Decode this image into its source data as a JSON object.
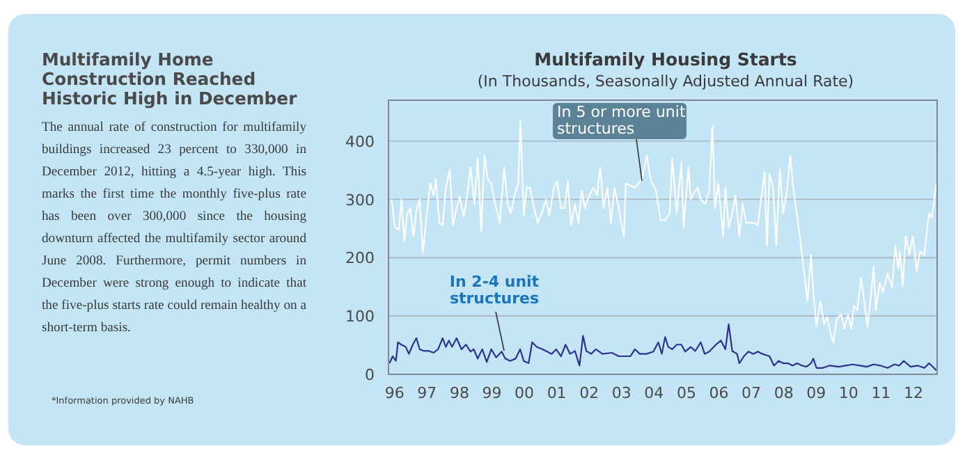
{
  "chart_data": [
    {
      "type": "other",
      "title": "Multifamily Home Construction Reached Historic High in December",
      "annotations": [
        "The annual rate of construction for multifamily buildings increased 23 percent to 330,000 in December 2012, hitting a 4.5-year high. This marks the first time the monthly five-plus rate has been over 300,000 since the housing downturn affected the multifamily sector around June 2008. Furthermore, permit numbers in December were strong enough to indicate that the five-plus starts rate could remain healthy on a short-term basis.",
        "*Information provided by NAHB"
      ]
    },
    {
      "type": "line",
      "title": "Multifamily Housing Starts",
      "subtitle": "(In Thousands, Seasonally Adjusted Annual Rate)",
      "xlim": [
        1995.94,
        2012.86
      ],
      "ylim": [
        0,
        470
      ],
      "xticks": [
        {
          "value": 1996,
          "label": "96"
        },
        {
          "value": 1997,
          "label": "97"
        },
        {
          "value": 1998,
          "label": "98"
        },
        {
          "value": 1999,
          "label": "99"
        },
        {
          "value": 2000,
          "label": "00"
        },
        {
          "value": 2001,
          "label": "01"
        },
        {
          "value": 2002,
          "label": "02"
        },
        {
          "value": 2003,
          "label": "03"
        },
        {
          "value": 2004,
          "label": "04"
        },
        {
          "value": 2005,
          "label": "05"
        },
        {
          "value": 2006,
          "label": "06"
        },
        {
          "value": 2007,
          "label": "07"
        },
        {
          "value": 2008,
          "label": "08"
        },
        {
          "value": 2009,
          "label": "09"
        },
        {
          "value": 2010,
          "label": "10"
        },
        {
          "value": 2011,
          "label": "11"
        },
        {
          "value": 2012,
          "label": "12"
        }
      ],
      "yticks": [
        0,
        100,
        200,
        300,
        400
      ],
      "grid": "y",
      "legend": false,
      "marker": "none",
      "line_style": "solid",
      "series": [
        {
          "name": "In 5 or more unit structures",
          "color": "#ffffff",
          "x": [
            1996.04,
            1996.14,
            1996.26,
            1996.34,
            1996.43,
            1996.51,
            1996.61,
            1996.71,
            1996.8,
            1996.9,
            1997.0,
            1997.11,
            1997.23,
            1997.33,
            1997.4,
            1997.51,
            1997.61,
            1997.71,
            1997.83,
            1997.93,
            1998.04,
            1998.14,
            1998.26,
            1998.37,
            1998.47,
            1998.59,
            1998.69,
            1998.8,
            1998.9,
            1999.0,
            1999.11,
            1999.23,
            1999.37,
            1999.51,
            1999.61,
            1999.71,
            1999.83,
            1999.94,
            2000.01,
            2000.11,
            2000.2,
            2000.3,
            2000.43,
            2000.54,
            2000.69,
            2000.8,
            2000.9,
            2001.04,
            2001.14,
            2001.26,
            2001.37,
            2001.47,
            2001.57,
            2001.69,
            2001.8,
            2001.9,
            2002.0,
            2002.11,
            2002.26,
            2002.37,
            2002.47,
            2002.57,
            2002.69,
            2002.8,
            2002.91,
            2003.04,
            2003.11,
            2003.2,
            2003.26,
            2003.54,
            2003.76,
            2003.9,
            2004.04,
            2004.19,
            2004.33,
            2004.47,
            2004.61,
            2004.69,
            2004.83,
            2004.97,
            2005.04,
            2005.19,
            2005.26,
            2005.37,
            2005.47,
            2005.57,
            2005.71,
            2005.83,
            2005.93,
            2006.01,
            2006.11,
            2006.26,
            2006.33,
            2006.43,
            2006.54,
            2006.64,
            2006.76,
            2006.86,
            2006.97,
            2007.19,
            2007.33,
            2007.44,
            2007.54,
            2007.61,
            2007.69,
            2007.8,
            2007.9,
            2008.01,
            2008.11,
            2008.23,
            2008.33,
            2008.43,
            2008.54,
            2008.66,
            2008.76,
            2008.86,
            2008.97,
            2009.04,
            2009.14,
            2009.26,
            2009.37,
            2009.47,
            2009.57,
            2009.66,
            2009.76,
            2009.9,
            2010.0,
            2010.11,
            2010.21,
            2010.29,
            2010.4,
            2010.51,
            2010.61,
            2010.71,
            2010.83,
            2010.9,
            2010.97,
            2011.09,
            2011.19,
            2011.33,
            2011.47,
            2011.57,
            2011.66,
            2011.71,
            2011.8,
            2011.89,
            2012.0,
            2012.11,
            2012.23,
            2012.33,
            2012.47,
            2012.54,
            2012.61,
            2012.69,
            2012.76,
            2012.83
          ],
          "values": [
            300,
            252,
            248,
            300,
            228,
            273,
            285,
            237,
            280,
            300,
            208,
            270,
            327,
            307,
            335,
            260,
            256,
            320,
            351,
            256,
            285,
            304,
            270,
            307,
            355,
            292,
            371,
            245,
            375,
            335,
            327,
            292,
            260,
            355,
            292,
            276,
            307,
            327,
            434,
            272,
            320,
            320,
            285,
            260,
            280,
            300,
            272,
            320,
            331,
            285,
            285,
            331,
            256,
            292,
            260,
            315,
            285,
            304,
            320,
            307,
            355,
            285,
            320,
            260,
            320,
            285,
            260,
            237,
            327,
            320,
            335,
            375,
            331,
            315,
            264,
            264,
            276,
            371,
            276,
            363,
            252,
            355,
            300,
            312,
            320,
            300,
            292,
            315,
            426,
            285,
            327,
            237,
            320,
            252,
            276,
            307,
            237,
            292,
            260,
            260,
            256,
            304,
            347,
            221,
            343,
            320,
            221,
            351,
            276,
            315,
            375,
            315,
            272,
            221,
            173,
            126,
            205,
            141,
            82,
            126,
            86,
            98,
            70,
            55,
            95,
            103,
            78,
            103,
            78,
            118,
            110,
            165,
            126,
            82,
            141,
            185,
            110,
            157,
            141,
            173,
            149,
            221,
            180,
            211,
            152,
            237,
            205,
            237,
            176,
            211,
            205,
            245,
            276,
            269,
            292,
            327
          ]
        },
        {
          "name": "In 2-4 unit structures",
          "color": "#2e3192",
          "x": [
            1995.97,
            1996.07,
            1996.17,
            1996.23,
            1996.33,
            1996.47,
            1996.57,
            1996.69,
            1996.8,
            1996.9,
            1997.04,
            1997.19,
            1997.33,
            1997.47,
            1997.61,
            1997.71,
            1997.8,
            1997.9,
            1998.04,
            1998.19,
            1998.33,
            1998.47,
            1998.57,
            1998.69,
            1998.83,
            1998.97,
            1999.11,
            1999.26,
            1999.43,
            1999.54,
            1999.69,
            1999.86,
            2000.0,
            2000.11,
            2000.26,
            2000.37,
            2000.51,
            2000.69,
            2000.83,
            2000.97,
            2001.11,
            2001.26,
            2001.4,
            2001.54,
            2001.69,
            2001.83,
            2001.94,
            2002.04,
            2002.19,
            2002.33,
            2002.54,
            2002.83,
            2003.04,
            2003.26,
            2003.4,
            2003.54,
            2003.69,
            2003.9,
            2004.11,
            2004.26,
            2004.37,
            2004.47,
            2004.57,
            2004.69,
            2004.83,
            2004.97,
            2005.09,
            2005.26,
            2005.4,
            2005.57,
            2005.69,
            2005.83,
            2006.04,
            2006.19,
            2006.33,
            2006.43,
            2006.54,
            2006.69,
            2006.76,
            2006.9,
            2007.04,
            2007.19,
            2007.33,
            2007.47,
            2007.69,
            2007.83,
            2007.97,
            2008.11,
            2008.26,
            2008.4,
            2008.54,
            2008.69,
            2008.83,
            2008.97,
            2009.04,
            2009.14,
            2009.33,
            2009.54,
            2009.83,
            2010.04,
            2010.26,
            2010.47,
            2010.69,
            2010.9,
            2011.11,
            2011.33,
            2011.54,
            2011.69,
            2011.83,
            2012.04,
            2012.26,
            2012.47,
            2012.61,
            2012.76,
            2012.83
          ],
          "values": [
            19,
            31,
            23,
            55,
            51,
            47,
            35,
            51,
            62,
            43,
            40,
            40,
            37,
            43,
            62,
            47,
            58,
            47,
            62,
            43,
            51,
            39,
            43,
            27,
            43,
            21,
            43,
            29,
            39,
            27,
            23,
            27,
            43,
            23,
            19,
            55,
            47,
            43,
            39,
            35,
            43,
            31,
            51,
            35,
            40,
            15,
            66,
            40,
            35,
            43,
            35,
            37,
            31,
            31,
            31,
            43,
            35,
            35,
            39,
            55,
            35,
            64,
            47,
            43,
            51,
            51,
            39,
            47,
            40,
            55,
            35,
            39,
            51,
            58,
            43,
            86,
            40,
            35,
            19,
            31,
            39,
            35,
            39,
            35,
            31,
            15,
            23,
            19,
            19,
            15,
            19,
            15,
            13,
            19,
            27,
            11,
            11,
            15,
            13,
            15,
            17,
            15,
            13,
            17,
            15,
            11,
            17,
            15,
            23,
            13,
            15,
            11,
            19,
            11,
            7
          ]
        }
      ]
    }
  ]
}
